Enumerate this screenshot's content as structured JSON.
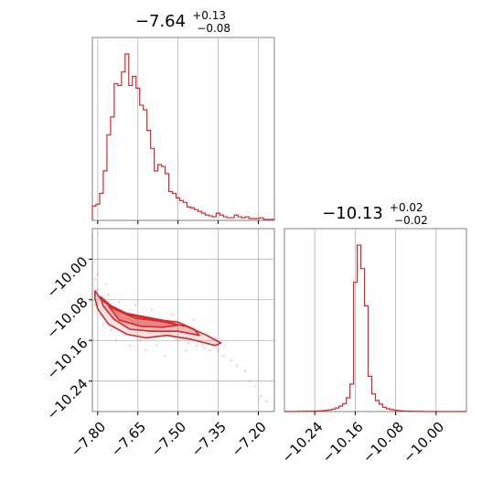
{
  "colors": {
    "series": "#d62728",
    "grid": "#b0b0b0",
    "frame": "#808080"
  },
  "chart_data": [
    {
      "type": "histogram",
      "panel": "top-left",
      "title": {
        "value": "−7.64",
        "plus": "+0.13",
        "minus": "−0.08"
      },
      "xlim": [
        -7.82,
        -7.14
      ],
      "grid": true,
      "xticks": [
        -7.8,
        -7.65,
        -7.5,
        -7.35,
        -7.2
      ],
      "bin_edges": [
        -7.82,
        -7.8064,
        -7.7928,
        -7.7792,
        -7.7656,
        -7.752,
        -7.7384,
        -7.7248,
        -7.7112,
        -7.6976,
        -7.684,
        -7.6704,
        -7.6568,
        -7.6432,
        -7.6296,
        -7.616,
        -7.6024,
        -7.5888,
        -7.5752,
        -7.5616,
        -7.548,
        -7.5344,
        -7.5208,
        -7.5072,
        -7.4936,
        -7.48,
        -7.4664,
        -7.4528,
        -7.4392,
        -7.4256,
        -7.412,
        -7.3984,
        -7.3848,
        -7.3712,
        -7.3576,
        -7.344,
        -7.3304,
        -7.3168,
        -7.3032,
        -7.2896,
        -7.276,
        -7.2624,
        -7.2488,
        -7.2352,
        -7.2216,
        -7.208,
        -7.1944,
        -7.1808,
        -7.1672,
        -7.1536,
        -7.14
      ],
      "counts": [
        16,
        18,
        30,
        55,
        95,
        115,
        152,
        150,
        165,
        185,
        150,
        160,
        147,
        128,
        123,
        100,
        80,
        55,
        62,
        60,
        52,
        32,
        30,
        25,
        22,
        20,
        15,
        14,
        12,
        10,
        8,
        6,
        5,
        4,
        8,
        6,
        4,
        3,
        3,
        6,
        4,
        3,
        4,
        2,
        2,
        2,
        3,
        1,
        1,
        1
      ]
    },
    {
      "type": "histogram",
      "panel": "bottom-right",
      "title": {
        "value": "−10.13",
        "plus": "+0.02",
        "minus": "−0.02"
      },
      "xlim": [
        -10.3,
        -9.94
      ],
      "grid": true,
      "xticks": [
        -10.24,
        -10.16,
        -10.08,
        -10.0
      ],
      "bin_edges": [
        -10.3,
        -10.2928,
        -10.2856,
        -10.2784,
        -10.2712,
        -10.264,
        -10.2568,
        -10.2496,
        -10.2424,
        -10.2352,
        -10.228,
        -10.2208,
        -10.2136,
        -10.2064,
        -10.1992,
        -10.192,
        -10.1848,
        -10.1776,
        -10.1704,
        -10.1632,
        -10.156,
        -10.1488,
        -10.1416,
        -10.1344,
        -10.1272,
        -10.12,
        -10.1128,
        -10.1056,
        -10.0984,
        -10.0912,
        -10.084,
        -10.0768,
        -10.0696,
        -10.0624,
        -10.0552,
        -10.048,
        -10.0408,
        -10.0336,
        -10.0264,
        -10.0192,
        -10.012,
        -10.0048,
        -9.9976,
        -9.9904,
        -9.9832,
        -9.976,
        -9.9688,
        -9.9616,
        -9.9544,
        -9.9472,
        -9.94
      ],
      "counts": [
        0,
        0,
        0,
        0,
        1,
        1,
        2,
        2,
        2,
        3,
        4,
        6,
        8,
        12,
        18,
        28,
        40,
        70,
        140,
        660,
        850,
        730,
        540,
        180,
        90,
        56,
        38,
        22,
        14,
        10,
        7,
        5,
        3,
        2,
        2,
        1,
        1,
        1,
        0,
        0,
        0,
        0,
        0,
        0,
        0,
        0,
        0,
        0,
        0,
        0
      ]
    },
    {
      "type": "contour",
      "panel": "bottom-left",
      "xlim": [
        -7.82,
        -7.14
      ],
      "ylim": [
        -10.3,
        -9.94
      ],
      "grid": true,
      "xticks": [
        -7.8,
        -7.65,
        -7.5,
        -7.35,
        -7.2
      ],
      "yticks": [
        -10.0,
        -10.08,
        -10.16,
        -10.24
      ],
      "contours": [
        [
          [
            -7.81,
            -10.062
          ],
          [
            -7.79,
            -10.078
          ],
          [
            -7.74,
            -10.098
          ],
          [
            -7.66,
            -10.116
          ],
          [
            -7.57,
            -10.122
          ],
          [
            -7.47,
            -10.132
          ],
          [
            -7.4,
            -10.148
          ],
          [
            -7.34,
            -10.165
          ],
          [
            -7.36,
            -10.17
          ],
          [
            -7.45,
            -10.158
          ],
          [
            -7.54,
            -10.15
          ],
          [
            -7.62,
            -10.155
          ],
          [
            -7.69,
            -10.148
          ],
          [
            -7.76,
            -10.128
          ],
          [
            -7.8,
            -10.098
          ],
          [
            -7.81,
            -10.078
          ]
        ],
        [
          [
            -7.79,
            -10.074
          ],
          [
            -7.75,
            -10.092
          ],
          [
            -7.68,
            -10.11
          ],
          [
            -7.6,
            -10.118
          ],
          [
            -7.5,
            -10.124
          ],
          [
            -7.44,
            -10.138
          ],
          [
            -7.42,
            -10.15
          ],
          [
            -7.5,
            -10.142
          ],
          [
            -7.6,
            -10.142
          ],
          [
            -7.68,
            -10.138
          ],
          [
            -7.74,
            -10.118
          ],
          [
            -7.78,
            -10.092
          ]
        ],
        [
          [
            -7.76,
            -10.092
          ],
          [
            -7.7,
            -10.106
          ],
          [
            -7.62,
            -10.114
          ],
          [
            -7.54,
            -10.122
          ],
          [
            -7.5,
            -10.13
          ],
          [
            -7.56,
            -10.134
          ],
          [
            -7.64,
            -10.132
          ],
          [
            -7.72,
            -10.12
          ]
        ]
      ],
      "scatter": [
        [
          -7.81,
          -10.04
        ],
        [
          -7.8,
          -10.06
        ],
        [
          -7.81,
          -10.09
        ],
        [
          -7.79,
          -10.11
        ],
        [
          -7.78,
          -10.13
        ],
        [
          -7.77,
          -10.05
        ],
        [
          -7.75,
          -10.14
        ],
        [
          -7.73,
          -10.16
        ],
        [
          -7.72,
          -10.085
        ],
        [
          -7.7,
          -10.15
        ],
        [
          -7.68,
          -10.17
        ],
        [
          -7.66,
          -10.09
        ],
        [
          -7.64,
          -10.16
        ],
        [
          -7.62,
          -10.18
        ],
        [
          -7.6,
          -10.1
        ],
        [
          -7.58,
          -10.17
        ],
        [
          -7.55,
          -10.19
        ],
        [
          -7.52,
          -10.11
        ],
        [
          -7.5,
          -10.16
        ],
        [
          -7.47,
          -10.18
        ],
        [
          -7.44,
          -10.12
        ],
        [
          -7.41,
          -10.17
        ],
        [
          -7.38,
          -10.18
        ],
        [
          -7.36,
          -10.155
        ],
        [
          -7.33,
          -10.19
        ],
        [
          -7.3,
          -10.2
        ],
        [
          -7.28,
          -10.21
        ],
        [
          -7.25,
          -10.22
        ],
        [
          -7.23,
          -10.24
        ],
        [
          -7.21,
          -10.25
        ],
        [
          -7.19,
          -10.27
        ],
        [
          -7.17,
          -10.28
        ],
        [
          -7.8,
          -10.03
        ],
        [
          -7.76,
          -10.07
        ],
        [
          -7.71,
          -10.12
        ],
        [
          -7.67,
          -10.125
        ],
        [
          -7.63,
          -10.135
        ],
        [
          -7.59,
          -10.14
        ],
        [
          -7.56,
          -10.145
        ],
        [
          -7.53,
          -10.15
        ],
        [
          -7.48,
          -10.155
        ],
        [
          -7.46,
          -10.165
        ],
        [
          -7.43,
          -10.17
        ],
        [
          -7.4,
          -10.175
        ],
        [
          -7.35,
          -10.18
        ]
      ]
    }
  ]
}
